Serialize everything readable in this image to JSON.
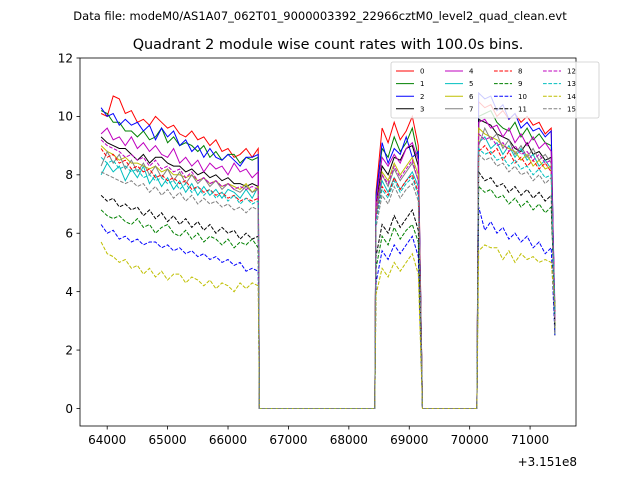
{
  "suptitle": "Data file: modeM0/AS1A07_062T01_9000003392_22966cztM0_level2_quad_clean.evt",
  "chart_data": {
    "type": "line",
    "title": "Quadrant 2 module wise count rates with 100.0s bins.",
    "xlabel": "",
    "ylabel": "",
    "x_offset_label": "+3.151e8",
    "xlim": [
      63550,
      71760
    ],
    "ylim": [
      -0.6,
      12
    ],
    "xticks": [
      64000,
      65000,
      66000,
      67000,
      68000,
      69000,
      70000,
      71000
    ],
    "yticks": [
      0,
      2,
      4,
      6,
      8,
      10,
      12
    ],
    "grid": false,
    "legend": {
      "placement": "top-right",
      "ncol": 4
    },
    "segments": [
      {
        "start": 63900,
        "n": 27
      },
      {
        "start": 68450,
        "n": 8
      },
      {
        "start": 70150,
        "n": 13
      }
    ],
    "zero_x": [
      66520,
      67000,
      67500,
      68000,
      68430,
      69220,
      69500,
      70000,
      70120
    ],
    "series": [
      {
        "name": "0",
        "color": "#ff0000",
        "dash": "solid",
        "values": [
          10.1,
          10.0,
          10.7,
          10.6,
          10.1,
          10.2,
          9.8,
          9.9,
          9.7,
          10.0,
          9.8,
          9.6,
          9.7,
          9.4,
          9.3,
          9.5,
          9.2,
          9.3,
          9.0,
          9.2,
          8.8,
          8.9,
          8.6,
          8.7,
          8.9,
          8.6,
          8.9,
          7.4,
          9.6,
          9.1,
          9.8,
          9.2,
          9.5,
          10.0,
          9.0,
          10.5,
          10.3,
          10.4,
          10.0,
          10.2,
          9.9,
          10.1,
          9.8,
          10.0,
          9.7,
          9.8,
          9.4,
          9.6
        ]
      },
      {
        "name": "1",
        "color": "#008000",
        "dash": "solid",
        "values": [
          10.2,
          10.1,
          9.8,
          9.8,
          9.5,
          9.5,
          9.3,
          9.5,
          9.2,
          9.3,
          9.6,
          9.1,
          9.3,
          9.0,
          9.1,
          9.0,
          8.8,
          9.0,
          8.6,
          8.8,
          8.5,
          8.7,
          8.7,
          8.4,
          8.6,
          8.5,
          8.6,
          7.3,
          8.9,
          8.6,
          9.3,
          8.8,
          9.1,
          9.6,
          8.6,
          10.0,
          10.1,
          10.2,
          9.8,
          9.6,
          9.5,
          9.8,
          9.3,
          9.6,
          9.2,
          9.4,
          9.1,
          9.0
        ]
      },
      {
        "name": "2",
        "color": "#0000ff",
        "dash": "solid",
        "values": [
          10.3,
          10.0,
          10.1,
          9.7,
          9.9,
          9.7,
          9.8,
          9.5,
          9.7,
          9.2,
          9.6,
          9.3,
          9.5,
          9.0,
          9.2,
          8.8,
          9.0,
          8.6,
          8.9,
          8.6,
          8.5,
          8.7,
          8.5,
          8.3,
          8.6,
          8.6,
          8.7,
          7.2,
          9.1,
          8.4,
          8.9,
          8.7,
          9.3,
          8.6,
          8.8,
          10.8,
          10.6,
          10.7,
          10.2,
          10.4,
          9.9,
          10.1,
          9.6,
          9.8,
          9.5,
          9.6,
          9.3,
          9.5
        ]
      },
      {
        "name": "3",
        "color": "#000000",
        "dash": "solid",
        "values": [
          9.3,
          9.1,
          9.0,
          8.9,
          8.9,
          8.7,
          8.5,
          8.7,
          8.4,
          8.6,
          8.6,
          8.4,
          8.3,
          8.3,
          8.1,
          8.2,
          8.0,
          8.1,
          7.9,
          8.0,
          7.8,
          7.9,
          7.7,
          7.7,
          7.6,
          7.7,
          7.6,
          7.0,
          8.3,
          8.0,
          8.6,
          8.5,
          8.9,
          9.0,
          8.3,
          9.9,
          9.8,
          9.7,
          9.4,
          9.3,
          9.2,
          8.9,
          8.8,
          9.1,
          8.7,
          8.8,
          8.5,
          8.6
        ]
      },
      {
        "name": "4",
        "color": "#bf00bf",
        "dash": "solid",
        "values": [
          9.4,
          9.6,
          9.2,
          9.3,
          9.0,
          9.3,
          8.9,
          9.1,
          8.8,
          9.0,
          8.7,
          8.6,
          8.9,
          8.4,
          8.6,
          8.3,
          8.5,
          8.1,
          8.4,
          8.2,
          8.3,
          8.0,
          8.4,
          8.1,
          8.2,
          7.9,
          8.1,
          7.1,
          8.6,
          8.3,
          8.7,
          8.4,
          8.9,
          9.1,
          8.5,
          9.8,
          9.9,
          9.6,
          9.7,
          9.3,
          9.6,
          9.1,
          9.4,
          9.0,
          9.3,
          8.9,
          9.1,
          8.8
        ]
      },
      {
        "name": "5",
        "color": "#00bfbf",
        "dash": "solid",
        "values": [
          8.0,
          8.4,
          8.1,
          8.3,
          7.8,
          8.2,
          7.9,
          8.3,
          7.7,
          8.0,
          7.6,
          7.9,
          7.5,
          7.8,
          7.4,
          7.7,
          7.3,
          7.6,
          7.3,
          7.5,
          7.2,
          7.5,
          7.4,
          7.2,
          7.5,
          7.2,
          7.6,
          6.6,
          7.8,
          7.4,
          7.9,
          7.5,
          7.8,
          8.1,
          7.6,
          9.1,
          9.3,
          8.9,
          9.1,
          8.7,
          9.0,
          8.6,
          8.9,
          8.5,
          8.7,
          8.3,
          8.5,
          8.2
        ]
      },
      {
        "name": "6",
        "color": "#bfbf00",
        "dash": "solid",
        "values": [
          9.0,
          8.8,
          8.7,
          8.5,
          8.6,
          8.4,
          8.4,
          8.3,
          8.2,
          8.3,
          8.1,
          8.2,
          8.0,
          8.0,
          7.9,
          8.0,
          7.8,
          7.9,
          7.7,
          7.8,
          7.6,
          7.7,
          7.6,
          7.5,
          7.7,
          7.4,
          7.6,
          6.8,
          8.1,
          7.8,
          8.4,
          8.0,
          8.3,
          8.6,
          8.0,
          9.6,
          9.4,
          9.3,
          9.2,
          9.0,
          8.9,
          8.8,
          8.5,
          8.7,
          8.3,
          8.5,
          8.2,
          8.3
        ]
      },
      {
        "name": "7",
        "color": "#808080",
        "dash": "solid",
        "values": [
          8.3,
          8.8,
          8.4,
          8.7,
          8.2,
          8.5,
          8.1,
          8.4,
          8.0,
          8.3,
          7.9,
          8.2,
          7.8,
          8.1,
          7.7,
          8.0,
          7.7,
          7.9,
          7.6,
          7.8,
          7.5,
          7.7,
          7.5,
          7.4,
          7.6,
          7.4,
          7.5,
          6.7,
          8.0,
          7.6,
          8.2,
          7.8,
          8.1,
          8.4,
          7.8,
          9.0,
          9.6,
          9.2,
          9.4,
          8.9,
          9.2,
          8.7,
          9.0,
          8.6,
          8.9,
          8.5,
          8.7,
          8.4
        ]
      },
      {
        "name": "8",
        "color": "#ff0000",
        "dash": "dashed",
        "values": [
          8.9,
          8.6,
          8.7,
          8.4,
          8.5,
          8.2,
          8.3,
          8.1,
          8.2,
          7.9,
          8.0,
          7.8,
          7.9,
          7.7,
          7.8,
          7.5,
          7.6,
          7.4,
          7.5,
          7.3,
          7.4,
          7.2,
          7.3,
          7.1,
          7.2,
          7.1,
          7.2,
          6.5,
          7.6,
          7.3,
          7.9,
          7.5,
          7.8,
          8.0,
          7.4,
          8.8,
          9.0,
          8.7,
          8.9,
          8.5,
          8.8,
          8.4,
          8.6,
          8.3,
          8.5,
          8.2,
          8.4,
          8.1
        ]
      },
      {
        "name": "9",
        "color": "#008000",
        "dash": "dashed",
        "values": [
          6.8,
          6.6,
          6.5,
          6.6,
          6.4,
          6.3,
          6.5,
          6.2,
          6.3,
          6.0,
          6.2,
          6.3,
          6.0,
          5.9,
          6.1,
          5.8,
          6.0,
          5.7,
          5.9,
          5.8,
          5.6,
          5.8,
          5.5,
          5.7,
          5.6,
          5.8,
          5.5,
          4.8,
          5.9,
          5.6,
          6.2,
          5.8,
          6.1,
          6.3,
          5.7,
          7.6,
          7.4,
          7.5,
          7.2,
          7.3,
          7.0,
          7.2,
          6.9,
          7.1,
          6.8,
          7.0,
          6.7,
          6.9
        ]
      },
      {
        "name": "10",
        "color": "#0000ff",
        "dash": "dashed",
        "values": [
          6.3,
          6.0,
          6.1,
          5.8,
          5.9,
          5.7,
          5.8,
          5.6,
          5.7,
          5.7,
          5.5,
          5.6,
          5.4,
          5.5,
          5.3,
          5.4,
          5.2,
          5.3,
          5.1,
          5.2,
          5.0,
          5.1,
          4.9,
          5.0,
          4.7,
          4.8,
          4.7,
          4.3,
          5.4,
          5.1,
          5.6,
          5.3,
          5.6,
          5.9,
          5.2,
          6.9,
          6.1,
          6.4,
          6.0,
          6.2,
          5.8,
          6.0,
          5.7,
          5.9,
          5.5,
          5.7,
          5.3,
          5.5
        ]
      },
      {
        "name": "11",
        "color": "#000000",
        "dash": "dashed",
        "values": [
          7.3,
          7.1,
          7.2,
          6.9,
          7.0,
          6.8,
          6.9,
          6.6,
          6.8,
          6.5,
          6.7,
          6.4,
          6.6,
          6.3,
          6.5,
          6.2,
          6.4,
          6.1,
          6.3,
          6.0,
          6.2,
          6.0,
          6.1,
          5.8,
          6.0,
          5.8,
          5.9,
          5.2,
          6.3,
          6.0,
          6.6,
          6.2,
          6.5,
          6.8,
          6.1,
          8.1,
          7.8,
          7.9,
          7.6,
          7.7,
          7.4,
          7.6,
          7.3,
          7.5,
          7.2,
          7.4,
          7.1,
          7.3
        ]
      },
      {
        "name": "12",
        "color": "#bf00bf",
        "dash": "dashed",
        "values": [
          9.2,
          9.0,
          8.9,
          8.8,
          8.6,
          8.7,
          8.5,
          8.6,
          8.3,
          8.5,
          8.2,
          8.3,
          8.1,
          8.2,
          7.9,
          8.1,
          7.8,
          7.9,
          7.7,
          7.8,
          7.6,
          7.7,
          7.5,
          7.6,
          7.5,
          7.6,
          7.5,
          6.8,
          8.0,
          7.7,
          8.3,
          7.9,
          8.2,
          8.5,
          7.8,
          9.4,
          9.2,
          9.3,
          9.0,
          9.1,
          8.8,
          9.0,
          8.7,
          8.8,
          8.5,
          8.7,
          8.4,
          8.5
        ]
      },
      {
        "name": "13",
        "color": "#00bfbf",
        "dash": "dashed",
        "values": [
          8.6,
          8.4,
          8.5,
          8.2,
          8.3,
          8.1,
          8.2,
          7.9,
          8.0,
          7.8,
          7.9,
          7.7,
          7.8,
          7.5,
          7.7,
          7.4,
          7.6,
          7.3,
          7.5,
          7.2,
          7.4,
          7.1,
          7.3,
          7.0,
          7.2,
          7.0,
          7.1,
          6.4,
          7.5,
          7.2,
          7.8,
          7.4,
          7.7,
          7.9,
          7.3,
          8.9,
          8.7,
          8.8,
          8.5,
          8.6,
          8.3,
          8.5,
          8.2,
          8.3,
          8.0,
          8.2,
          7.9,
          8.0
        ]
      },
      {
        "name": "14",
        "color": "#bfbf00",
        "dash": "dashed",
        "values": [
          5.7,
          5.3,
          5.2,
          5.0,
          5.1,
          4.8,
          4.9,
          4.6,
          4.8,
          4.5,
          4.7,
          4.4,
          4.6,
          4.6,
          4.3,
          4.5,
          4.4,
          4.2,
          4.4,
          4.1,
          4.3,
          4.2,
          4.0,
          4.3,
          4.1,
          4.3,
          4.2,
          3.9,
          4.8,
          4.5,
          5.0,
          4.7,
          5.0,
          5.3,
          4.6,
          5.4,
          5.6,
          5.5,
          5.5,
          5.1,
          5.4,
          5.0,
          5.3,
          5.1,
          5.2,
          5.0,
          5.1,
          5.0
        ]
      },
      {
        "name": "15",
        "color": "#808080",
        "dash": "dashed",
        "values": [
          8.1,
          8.0,
          7.9,
          7.8,
          7.7,
          7.8,
          7.6,
          7.7,
          7.4,
          7.6,
          7.3,
          7.5,
          7.2,
          7.4,
          7.1,
          7.3,
          7.0,
          7.2,
          7.0,
          7.1,
          6.9,
          7.0,
          6.8,
          6.9,
          6.7,
          6.9,
          6.8,
          6.2,
          7.3,
          7.0,
          7.6,
          7.2,
          7.5,
          7.7,
          7.1,
          8.7,
          8.5,
          8.6,
          8.3,
          8.4,
          8.1,
          8.3,
          8.0,
          8.1,
          7.8,
          8.0,
          7.7,
          7.9
        ]
      }
    ]
  }
}
